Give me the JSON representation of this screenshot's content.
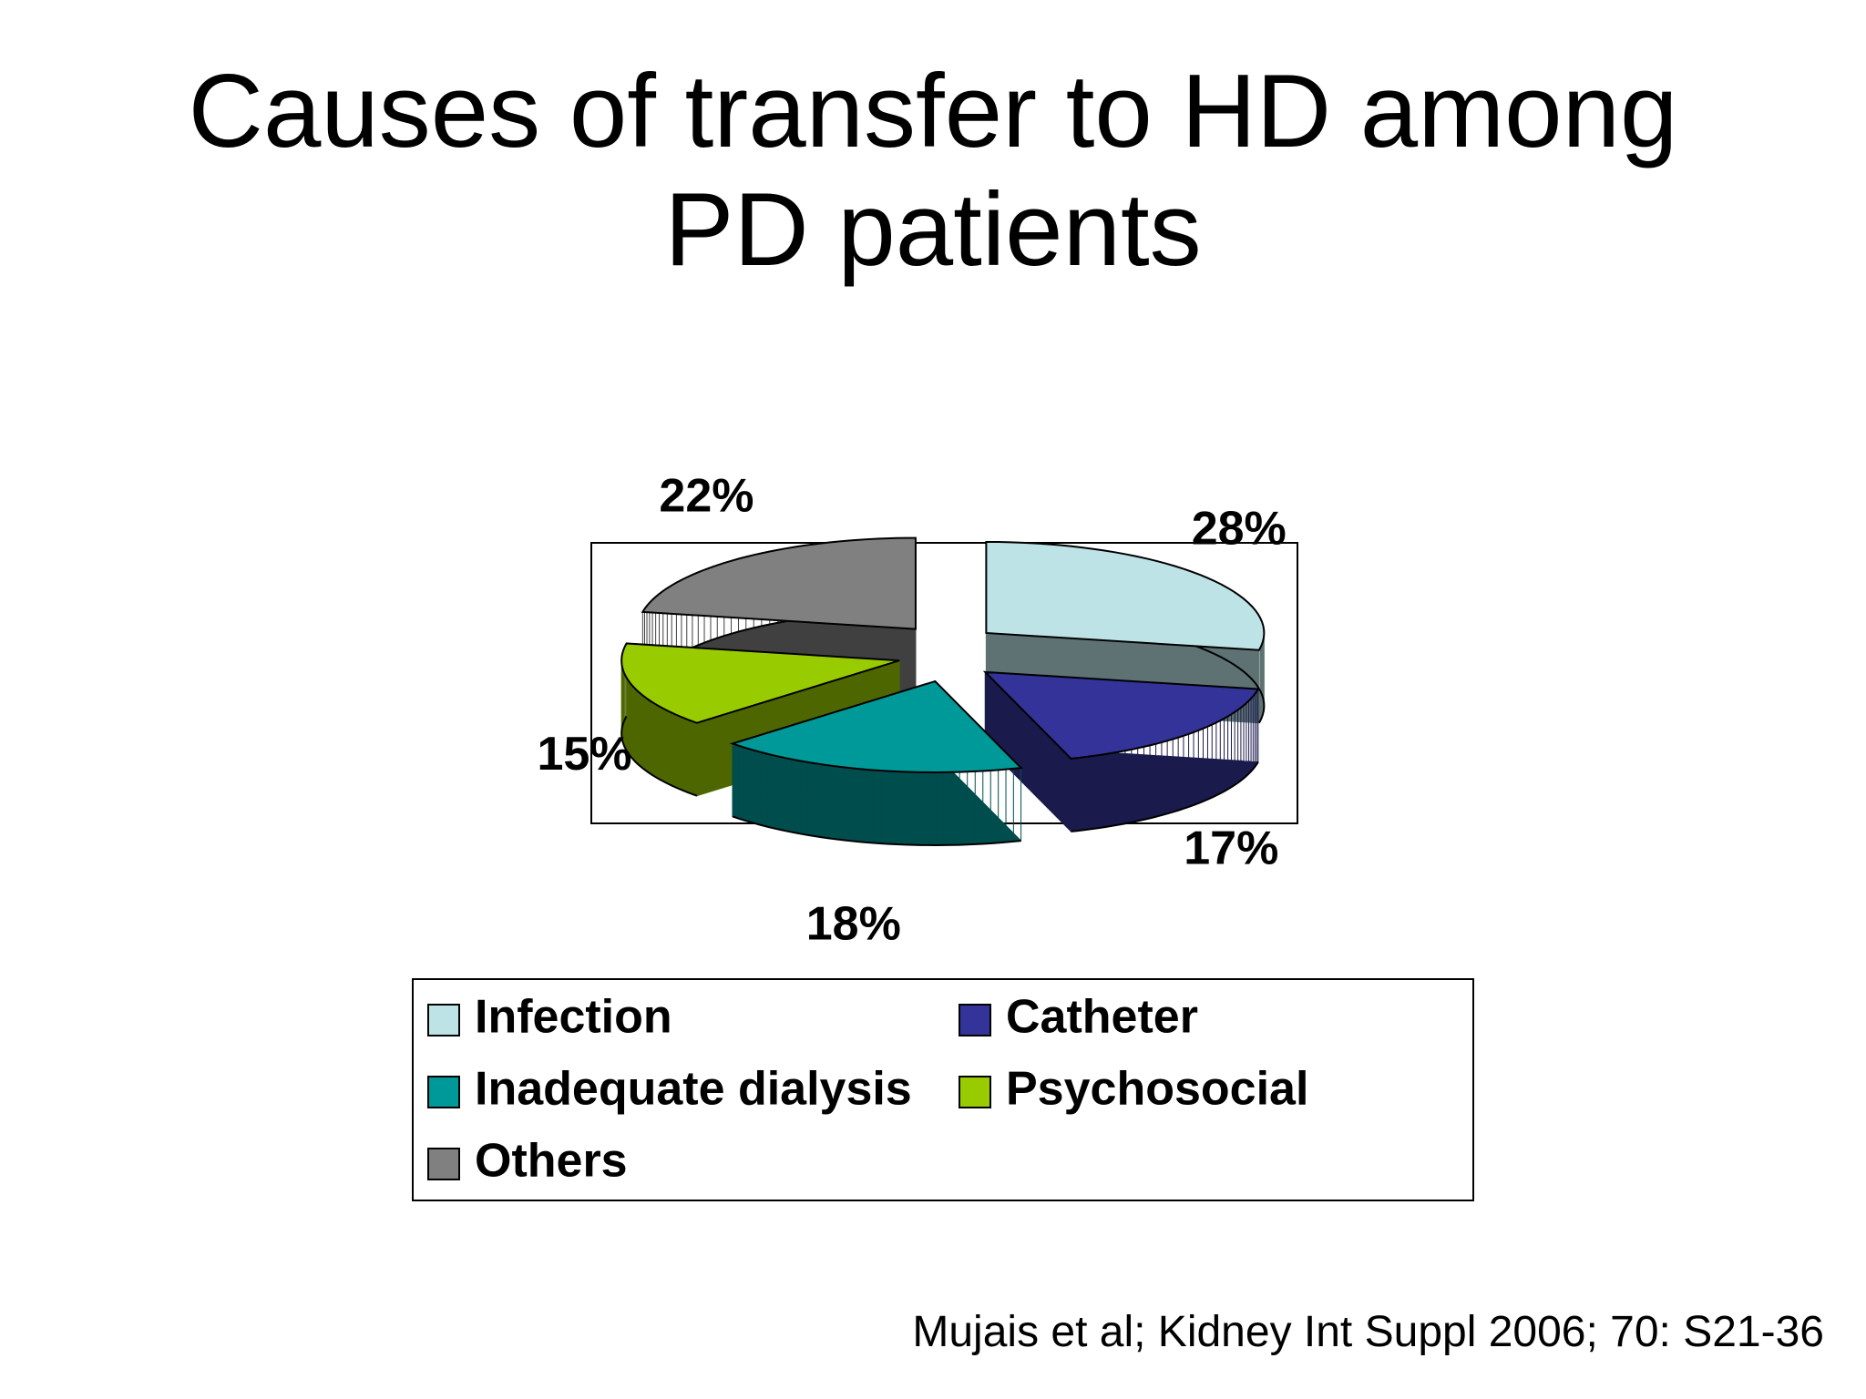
{
  "chart_data": {
    "type": "pie",
    "title": "Causes of transfer to HD among PD patients",
    "categories": [
      "Infection",
      "Catheter",
      "Inadequate dialysis",
      "Psychosocial",
      "Others"
    ],
    "values": [
      28,
      17,
      18,
      15,
      22
    ],
    "value_labels": [
      "28%",
      "17%",
      "18%",
      "15%",
      "22%"
    ],
    "colors": [
      "#bde3e6",
      "#333399",
      "#009999",
      "#99cc00",
      "#808080"
    ],
    "source": "Mujais et al; Kidney Int Suppl 2006; 70: S21-36"
  }
}
